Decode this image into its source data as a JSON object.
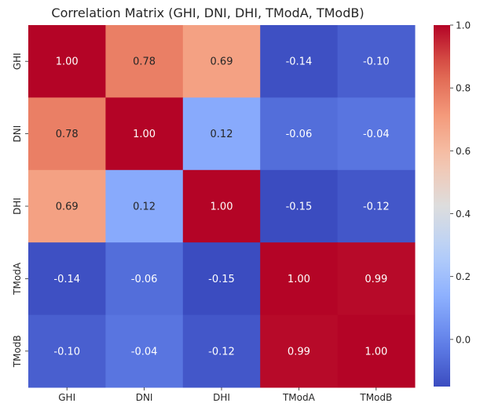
{
  "chart_data": {
    "type": "heatmap",
    "title": "Correlation Matrix (GHI, DNI, DHI, TModA, TModB)",
    "xlabel": "",
    "ylabel": "",
    "x_labels": [
      "GHI",
      "DNI",
      "DHI",
      "TModA",
      "TModB"
    ],
    "y_labels": [
      "GHI",
      "DNI",
      "DHI",
      "TModA",
      "TModB"
    ],
    "values": [
      [
        1.0,
        0.78,
        0.69,
        -0.14,
        -0.1
      ],
      [
        0.78,
        1.0,
        0.12,
        -0.06,
        -0.04
      ],
      [
        0.69,
        0.12,
        1.0,
        -0.15,
        -0.12
      ],
      [
        -0.14,
        -0.06,
        -0.15,
        1.0,
        0.99
      ],
      [
        -0.1,
        -0.04,
        -0.12,
        0.99,
        1.0
      ]
    ],
    "value_format": "0.00",
    "colormap": "coolwarm",
    "colorbar": {
      "min": -0.15,
      "max": 1.0,
      "ticks": [
        0.0,
        0.2,
        0.4,
        0.6,
        0.8,
        1.0
      ],
      "tick_labels": [
        "0.0",
        "0.2",
        "0.4",
        "0.6",
        "0.8",
        "1.0"
      ]
    },
    "colors": {
      "cold": "#3b4cc0",
      "mid": "#dddddd",
      "warm": "#b40426",
      "text_dark": "#262626",
      "text_light": "#ffffff"
    }
  }
}
